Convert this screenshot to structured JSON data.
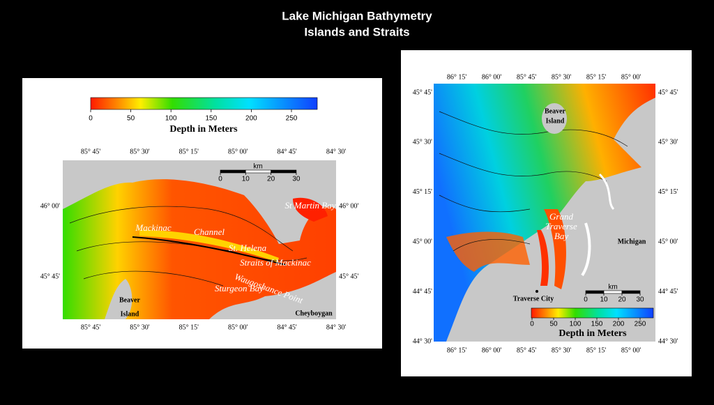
{
  "title": [
    "Lake Michigan Bathymetry",
    "Islands and Straits"
  ],
  "left_map": {
    "colorbar": {
      "ticks": [
        0,
        50,
        100,
        150,
        200,
        250
      ],
      "label": "Depth in Meters"
    },
    "longitudes": [
      "85° 45'",
      "85° 30'",
      "85° 15'",
      "85° 00'",
      "84° 45'",
      "84° 30'"
    ],
    "latitudes": [
      "46° 00'",
      "45° 45'"
    ],
    "scale": {
      "unit": "km",
      "ticks": [
        0,
        10,
        20,
        30
      ]
    },
    "places": [
      "Mackinac",
      "Channel",
      "St. Helena",
      "Straits of Mackinac",
      "Waugoshance Point",
      "Sturgeon Bay",
      "St Martin Bay",
      "Beaver",
      "Island",
      "Cheyboygan"
    ]
  },
  "right_map": {
    "colorbar": {
      "ticks": [
        0,
        50,
        100,
        150,
        200,
        250
      ],
      "label": "Depth in Meters"
    },
    "longitudes": [
      "86° 15'",
      "86° 00'",
      "85° 45'",
      "85° 30'",
      "85° 15'",
      "85° 00'"
    ],
    "latitudes": [
      "45° 45'",
      "45° 30'",
      "45° 15'",
      "45° 00'",
      "44° 45'",
      "44° 30'"
    ],
    "scale": {
      "unit": "km",
      "ticks": [
        0,
        10,
        20,
        30
      ]
    },
    "places": [
      "Beaver",
      "Island",
      "Grand",
      "Traverse",
      "Bay",
      "Michigan",
      "Traverse City"
    ]
  }
}
